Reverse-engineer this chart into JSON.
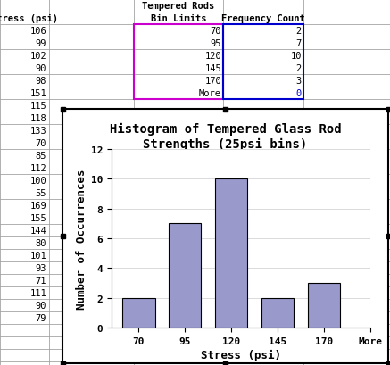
{
  "title": "Histogram of Tempered Glass Rod\nStrengths (25psi bins)",
  "xlabel": "Stress (psi)",
  "ylabel": "Number of Occurrences",
  "categories": [
    "70",
    "95",
    "120",
    "145",
    "170",
    "More"
  ],
  "values": [
    2,
    7,
    10,
    2,
    3,
    0
  ],
  "bar_color": "#9999cc",
  "bar_edgecolor": "#000000",
  "ylim": [
    0,
    12
  ],
  "yticks": [
    0,
    2,
    4,
    6,
    8,
    10,
    12
  ],
  "spreadsheet_bg": "#d4d4d4",
  "cell_bg": "#ffffff",
  "grid_color": "#a0a0a0",
  "chart_bg": "#ffffff",
  "title_fontsize": 10,
  "axis_label_fontsize": 9,
  "tick_fontsize": 8,
  "font_family": "monospace",
  "header_title": "Tempered Rods",
  "col1_header": "Stress (psi)",
  "col2_header": "Bin Limits",
  "col3_header": "Frequency Count",
  "stress_values": [
    106,
    99,
    102,
    90,
    98,
    151,
    115,
    118,
    133,
    70,
    85,
    112,
    100,
    55,
    169,
    155,
    144,
    80,
    101,
    93,
    71,
    111,
    90,
    79
  ],
  "bin_limits": [
    70,
    95,
    120,
    145,
    170,
    "More"
  ],
  "freq_counts": [
    2,
    7,
    10,
    2,
    3,
    0
  ],
  "purple_border_color": "#cc00cc",
  "blue_border_color": "#0000cc",
  "chart_border_color": "#000000",
  "chart_handle_color": "#000000"
}
